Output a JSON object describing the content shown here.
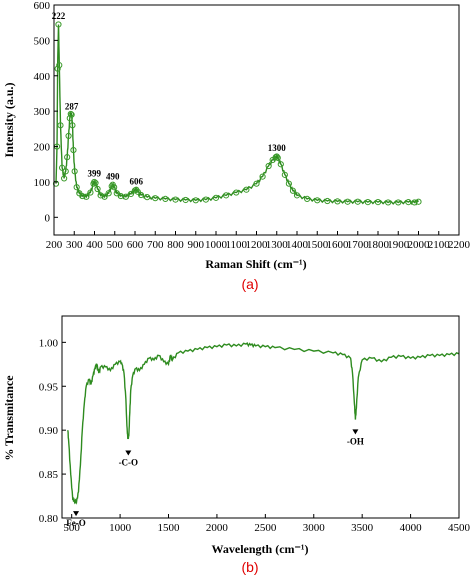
{
  "colors": {
    "series": "#2e8b1f",
    "marker": "#3a9a2a",
    "axis": "#000000",
    "panel_label": "#e00000"
  },
  "chart_data": [
    {
      "id": "a",
      "type": "line",
      "panel_label": "(a)",
      "xlabel": "Raman Shift (cm⁻¹)",
      "ylabel": "Intensity (a.u.)",
      "xlim": [
        200,
        2200
      ],
      "ylim": [
        -50,
        600
      ],
      "xticks": [
        200,
        300,
        400,
        500,
        600,
        700,
        800,
        900,
        1000,
        1100,
        1200,
        1300,
        1400,
        1500,
        1600,
        1700,
        1800,
        1900,
        2000,
        2100,
        2200
      ],
      "yticks": [
        0,
        100,
        200,
        300,
        400,
        500,
        600
      ],
      "series": [
        {
          "markers": true,
          "x": [
            210,
            215,
            218,
            222,
            226,
            232,
            240,
            250,
            258,
            265,
            272,
            278,
            283,
            287,
            291,
            296,
            302,
            312,
            325,
            340,
            360,
            380,
            395,
            399,
            405,
            415,
            430,
            450,
            470,
            485,
            490,
            497,
            510,
            530,
            555,
            580,
            600,
            606,
            614,
            630,
            660,
            700,
            750,
            800,
            850,
            900,
            950,
            1000,
            1050,
            1100,
            1150,
            1200,
            1230,
            1260,
            1280,
            1295,
            1300,
            1305,
            1320,
            1340,
            1360,
            1380,
            1400,
            1450,
            1500,
            1550,
            1600,
            1650,
            1700,
            1750,
            1800,
            1850,
            1900,
            1950,
            1980,
            2000
          ],
          "y": [
            95,
            200,
            420,
            545,
            430,
            260,
            140,
            110,
            130,
            170,
            230,
            280,
            292,
            290,
            260,
            190,
            130,
            85,
            68,
            60,
            58,
            70,
            95,
            100,
            97,
            80,
            62,
            58,
            68,
            88,
            92,
            85,
            68,
            60,
            58,
            66,
            76,
            78,
            72,
            63,
            57,
            54,
            52,
            50,
            49,
            48,
            50,
            55,
            62,
            70,
            78,
            95,
            115,
            145,
            162,
            170,
            172,
            168,
            150,
            120,
            95,
            75,
            62,
            52,
            48,
            46,
            45,
            44,
            44,
            43,
            43,
            42,
            42,
            43,
            42,
            44
          ]
        }
      ],
      "annotations": [
        {
          "text": "222",
          "x": 222,
          "y": 560
        },
        {
          "text": "287",
          "x": 287,
          "y": 305
        },
        {
          "text": "399",
          "x": 399,
          "y": 115
        },
        {
          "text": "490",
          "x": 490,
          "y": 107
        },
        {
          "text": "606",
          "x": 606,
          "y": 93
        },
        {
          "text": "1300",
          "x": 1300,
          "y": 187
        }
      ]
    },
    {
      "id": "b",
      "type": "line",
      "panel_label": "(b)",
      "xlabel": "Wavelength (cm⁻¹)",
      "ylabel": "% Transmitance",
      "xlim": [
        400,
        4500
      ],
      "ylim": [
        0.8,
        1.03
      ],
      "xticks": [
        500,
        1000,
        1500,
        2000,
        2500,
        3000,
        3500,
        4000,
        4500
      ],
      "yticks": [
        0.8,
        0.85,
        0.9,
        0.95,
        1.0
      ],
      "series": [
        {
          "markers": false,
          "x": [
            460,
            470,
            490,
            510,
            530,
            550,
            570,
            590,
            610,
            630,
            650,
            680,
            700,
            720,
            740,
            760,
            780,
            800,
            850,
            900,
            950,
            1000,
            1020,
            1040,
            1060,
            1070,
            1080,
            1090,
            1100,
            1110,
            1130,
            1160,
            1200,
            1250,
            1300,
            1350,
            1400,
            1450,
            1500,
            1520,
            1540,
            1600,
            1700,
            1800,
            1900,
            2000,
            2100,
            2200,
            2300,
            2350,
            2400,
            2500,
            2600,
            2800,
            3000,
            3200,
            3300,
            3380,
            3400,
            3420,
            3430,
            3440,
            3460,
            3500,
            3600,
            3700,
            3800,
            3900,
            4000,
            4100,
            4200,
            4300,
            4400,
            4500
          ],
          "y": [
            0.9,
            0.885,
            0.85,
            0.822,
            0.818,
            0.818,
            0.83,
            0.86,
            0.9,
            0.93,
            0.95,
            0.958,
            0.952,
            0.962,
            0.97,
            0.975,
            0.965,
            0.972,
            0.972,
            0.968,
            0.975,
            0.978,
            0.975,
            0.965,
            0.935,
            0.905,
            0.89,
            0.893,
            0.92,
            0.945,
            0.962,
            0.97,
            0.968,
            0.975,
            0.982,
            0.98,
            0.985,
            0.978,
            0.975,
            0.985,
            0.98,
            0.988,
            0.99,
            0.992,
            0.994,
            0.995,
            0.997,
            0.996,
            0.998,
            0.997,
            0.996,
            0.995,
            0.994,
            0.992,
            0.99,
            0.988,
            0.986,
            0.982,
            0.965,
            0.93,
            0.912,
            0.925,
            0.96,
            0.98,
            0.982,
            0.978,
            0.983,
            0.984,
            0.982,
            0.983,
            0.985,
            0.985,
            0.986,
            0.987
          ]
        }
      ],
      "annotations": [
        {
          "text": "Fe-O",
          "x": 545,
          "y": 0.809,
          "arrow": true
        },
        {
          "text": "-C-O",
          "x": 1085,
          "y": 0.878,
          "arrow": true
        },
        {
          "text": "-OH",
          "x": 3430,
          "y": 0.902,
          "arrow": true
        }
      ]
    }
  ]
}
